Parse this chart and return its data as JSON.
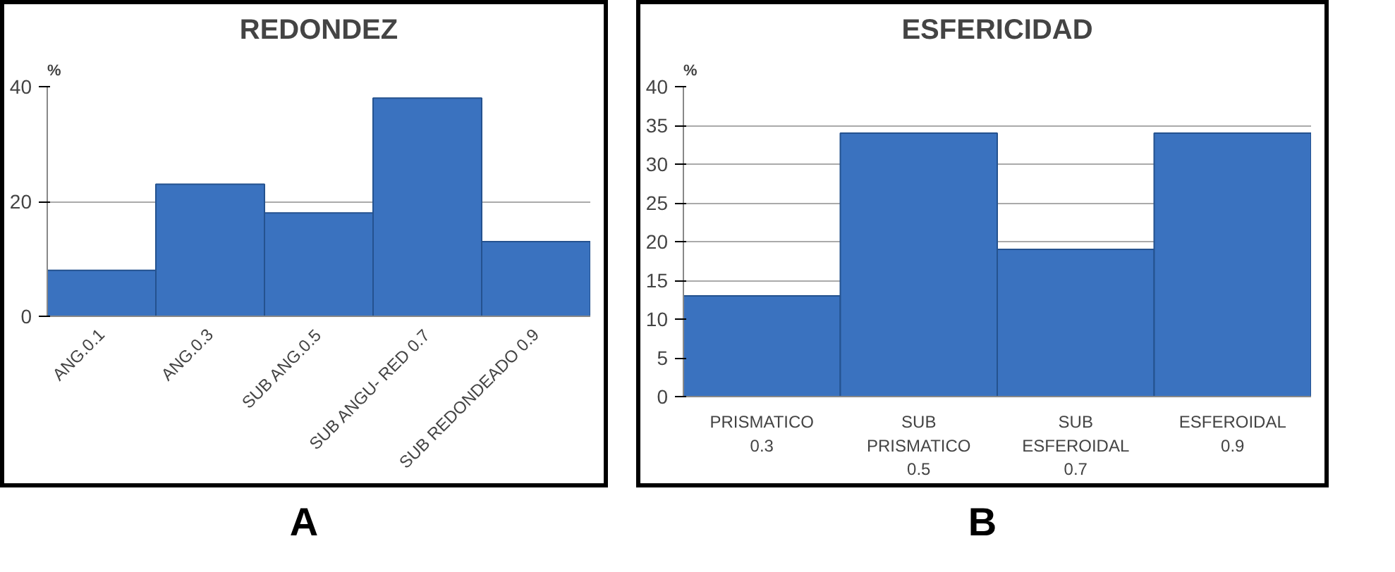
{
  "chart_data": [
    {
      "type": "bar",
      "title": "REDONDEZ",
      "ylabel": "%",
      "categories": [
        "ANG.0.1",
        "ANG.0.3",
        "SUB ANG.0.5",
        "SUB ANGU- RED 0.7",
        "SUB REDONDEADO  0.9"
      ],
      "values": [
        8,
        23,
        18,
        38,
        13
      ],
      "color": "#3a72bf",
      "ylim": [
        0,
        40
      ],
      "yticks": [
        0,
        20,
        40
      ],
      "grid": "y",
      "annotations": [
        "A"
      ]
    },
    {
      "type": "bar",
      "title": "ESFERICIDAD",
      "ylabel": "%",
      "categories": [
        "PRISMATICO 0.3",
        "SUB PRISMATICO 0.5",
        "SUB ESFEROIDAL 0.7",
        "ESFEROIDAL 0.9"
      ],
      "values": [
        13,
        34,
        19,
        34
      ],
      "color": "#3a72bf",
      "ylim": [
        0,
        40
      ],
      "yticks": [
        0,
        5,
        10,
        15,
        20,
        25,
        30,
        35,
        40
      ],
      "grid": "y",
      "annotations": [
        "B"
      ]
    }
  ]
}
